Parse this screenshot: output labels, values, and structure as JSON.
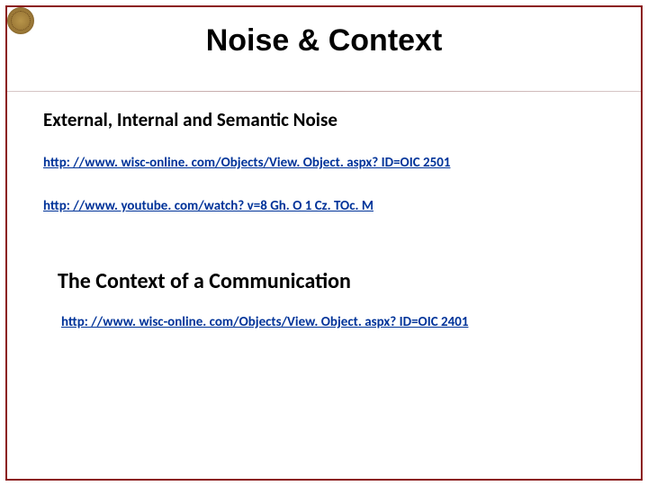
{
  "slide": {
    "title": "Noise & Context",
    "section1": {
      "heading": "External, Internal and Semantic Noise",
      "links": [
        "http: //www. wisc-online. com/Objects/View. Object. aspx? ID=OIC 2501",
        "http: //www. youtube. com/watch? v=8 Gh. O 1 Cz. TOc. M"
      ]
    },
    "section2": {
      "heading": "The Context of a Communication",
      "links": [
        "http: //www. wisc-online. com/Objects/View. Object. aspx? ID=OIC 2401"
      ]
    },
    "colors": {
      "frame_border": "#8b1a1a",
      "link_color": "#003399",
      "text_color": "#000000",
      "background": "#ffffff"
    },
    "typography": {
      "title_fontsize": 34,
      "title_weight": 700,
      "heading_fontsize": 21,
      "heading2_fontsize": 24,
      "link_fontsize": 15
    }
  }
}
